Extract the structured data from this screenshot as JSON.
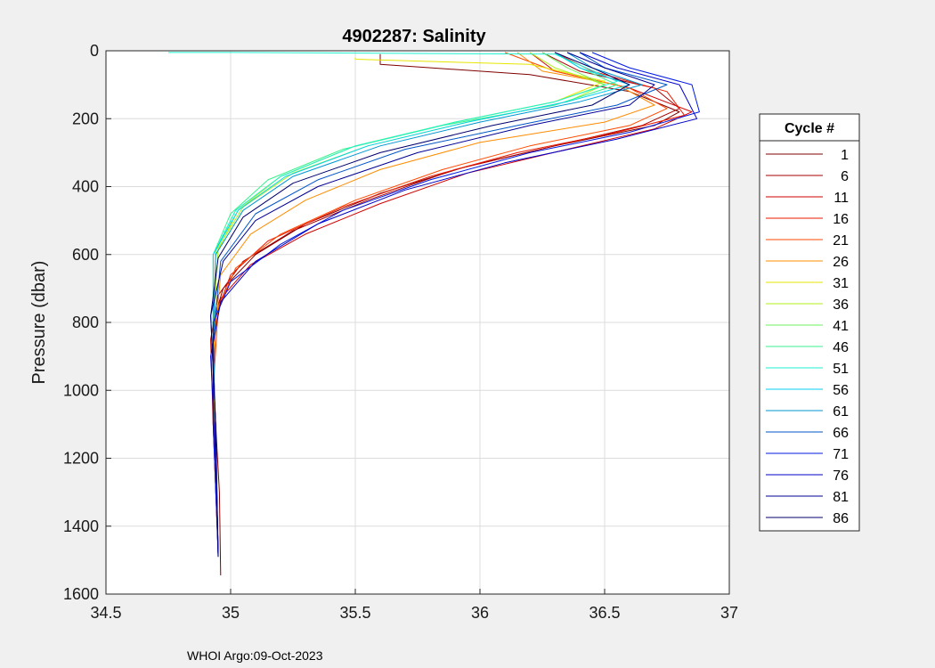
{
  "chart_data": {
    "type": "line",
    "title": "4902287:  Salinity",
    "xlabel": "",
    "ylabel": "Pressure (dbar)",
    "xlim": [
      34.5,
      37
    ],
    "ylim": [
      0,
      1600
    ],
    "y_reversed": true,
    "grid": true,
    "x_ticks": [
      "34.5",
      "35",
      "35.5",
      "36",
      "36.5",
      "37"
    ],
    "y_ticks": [
      "0",
      "200",
      "400",
      "600",
      "800",
      "1000",
      "1200",
      "1400",
      "1600"
    ],
    "legend": {
      "title": "Cycle #",
      "placement": "right",
      "entries": [
        {
          "label": "1",
          "color": "#7f0000"
        },
        {
          "label": "6",
          "color": "#a80000"
        },
        {
          "label": "11",
          "color": "#d10000"
        },
        {
          "label": "16",
          "color": "#ee1a00"
        },
        {
          "label": "21",
          "color": "#ff4a00"
        },
        {
          "label": "26",
          "color": "#ff8c00"
        },
        {
          "label": "31",
          "color": "#e6e600"
        },
        {
          "label": "36",
          "color": "#b0f21c"
        },
        {
          "label": "41",
          "color": "#6ef25e"
        },
        {
          "label": "46",
          "color": "#38f28c"
        },
        {
          "label": "51",
          "color": "#1ef2d0"
        },
        {
          "label": "56",
          "color": "#00d2f0"
        },
        {
          "label": "61",
          "color": "#0096d2"
        },
        {
          "label": "66",
          "color": "#0055c8"
        },
        {
          "label": "71",
          "color": "#0018e6"
        },
        {
          "label": "76",
          "color": "#0000c8"
        },
        {
          "label": "81",
          "color": "#000096"
        },
        {
          "label": "86",
          "color": "#00006e"
        }
      ]
    },
    "series": [
      {
        "name": "1",
        "color": "#7f0000",
        "x": [
          35.6,
          35.6,
          36.2,
          36.6,
          36.8,
          36.7,
          36.3,
          35.95,
          35.6,
          35.3,
          35.1,
          34.97,
          34.93,
          34.93,
          34.94,
          34.955,
          34.96
        ],
        "y": [
          10,
          40,
          70,
          120,
          180,
          220,
          280,
          340,
          420,
          510,
          600,
          700,
          800,
          900,
          1100,
          1300,
          1545
        ]
      },
      {
        "name": "6",
        "color": "#a80000",
        "x": [
          36.25,
          36.4,
          36.7,
          36.8,
          36.65,
          36.3,
          35.9,
          35.55,
          35.25,
          35.05,
          34.95,
          34.92,
          34.93,
          34.95
        ],
        "y": [
          5,
          60,
          110,
          170,
          220,
          280,
          350,
          440,
          530,
          620,
          720,
          850,
          1100,
          1480
        ]
      },
      {
        "name": "11",
        "color": "#d10000",
        "x": [
          36.2,
          36.3,
          36.6,
          36.85,
          36.7,
          36.35,
          35.95,
          35.6,
          35.3,
          35.08,
          34.96,
          34.93,
          34.93,
          34.95
        ],
        "y": [
          5,
          60,
          110,
          180,
          230,
          290,
          360,
          450,
          540,
          630,
          730,
          860,
          1100,
          1480
        ]
      },
      {
        "name": "16",
        "color": "#ee1a00",
        "x": [
          36.3,
          36.45,
          36.75,
          36.82,
          36.55,
          36.15,
          35.8,
          35.45,
          35.15,
          35.0,
          34.94,
          34.93,
          34.95
        ],
        "y": [
          5,
          60,
          120,
          190,
          240,
          300,
          370,
          460,
          560,
          660,
          780,
          1000,
          1480
        ]
      },
      {
        "name": "21",
        "color": "#ff4a00",
        "x": [
          36.1,
          36.3,
          36.6,
          36.75,
          36.6,
          36.2,
          35.85,
          35.5,
          35.2,
          35.02,
          34.95,
          34.93,
          34.95
        ],
        "y": [
          5,
          60,
          110,
          170,
          220,
          280,
          350,
          440,
          540,
          640,
          760,
          1000,
          1480
        ]
      },
      {
        "name": "26",
        "color": "#ff8c00",
        "x": [
          36.15,
          36.25,
          36.55,
          36.7,
          36.5,
          36.0,
          35.6,
          35.3,
          35.08,
          34.96,
          34.93,
          34.95
        ],
        "y": [
          5,
          60,
          100,
          160,
          210,
          270,
          350,
          440,
          540,
          660,
          900,
          1480
        ]
      },
      {
        "name": "31",
        "color": "#e6e600",
        "x": [
          35.5,
          35.5,
          36.2,
          36.5,
          36.3,
          35.9,
          35.5,
          35.2,
          35.03,
          34.94,
          34.93,
          34.95
        ],
        "y": [
          20,
          25,
          40,
          90,
          150,
          210,
          280,
          370,
          470,
          600,
          900,
          1480
        ]
      },
      {
        "name": "36",
        "color": "#b0f21c",
        "x": [
          36.2,
          36.3,
          36.5,
          36.35,
          35.95,
          35.55,
          35.25,
          35.05,
          34.95,
          34.93,
          34.95
        ],
        "y": [
          5,
          50,
          100,
          150,
          210,
          280,
          360,
          460,
          580,
          850,
          1480
        ]
      },
      {
        "name": "41",
        "color": "#6ef25e",
        "x": [
          36.25,
          36.35,
          36.5,
          36.3,
          35.9,
          35.5,
          35.2,
          35.02,
          34.94,
          34.93,
          34.95
        ],
        "y": [
          5,
          50,
          100,
          150,
          210,
          280,
          370,
          470,
          590,
          850,
          1480
        ]
      },
      {
        "name": "46",
        "color": "#38f28c",
        "x": [
          36.3,
          36.4,
          36.55,
          36.3,
          35.85,
          35.45,
          35.15,
          35.0,
          34.93,
          34.93,
          34.95
        ],
        "y": [
          5,
          50,
          100,
          160,
          220,
          290,
          380,
          480,
          600,
          850,
          1480
        ]
      },
      {
        "name": "51",
        "color": "#1ef2d0",
        "x": [
          34.75,
          35.0,
          36.3,
          36.55,
          36.3,
          35.9,
          35.5,
          35.2,
          35.02,
          34.93,
          34.93,
          34.95
        ],
        "y": [
          5,
          5,
          10,
          90,
          150,
          210,
          280,
          370,
          470,
          600,
          850,
          1480
        ]
      },
      {
        "name": "56",
        "color": "#00d2f0",
        "x": [
          36.3,
          36.4,
          36.6,
          36.35,
          35.95,
          35.55,
          35.22,
          35.03,
          34.93,
          34.93,
          34.95
        ],
        "y": [
          5,
          50,
          100,
          150,
          210,
          280,
          370,
          470,
          600,
          850,
          1480
        ]
      },
      {
        "name": "61",
        "color": "#0096d2",
        "x": [
          36.35,
          36.45,
          36.65,
          36.4,
          36.0,
          35.6,
          35.25,
          35.05,
          34.94,
          34.93,
          34.95
        ],
        "y": [
          5,
          50,
          100,
          150,
          210,
          280,
          370,
          470,
          600,
          850,
          1480
        ]
      },
      {
        "name": "66",
        "color": "#0055c8",
        "x": [
          36.4,
          36.5,
          36.75,
          36.55,
          36.15,
          35.7,
          35.35,
          35.1,
          34.96,
          34.93,
          34.95
        ],
        "y": [
          5,
          50,
          100,
          160,
          220,
          290,
          380,
          480,
          620,
          850,
          1480
        ]
      },
      {
        "name": "71",
        "color": "#0018e6",
        "x": [
          36.45,
          36.6,
          36.85,
          36.88,
          36.6,
          36.2,
          35.8,
          35.45,
          35.2,
          35.0,
          34.93,
          34.93,
          34.95
        ],
        "y": [
          5,
          50,
          100,
          180,
          240,
          300,
          380,
          470,
          570,
          680,
          800,
          1100,
          1480
        ]
      },
      {
        "name": "76",
        "color": "#0000c8",
        "x": [
          36.4,
          36.55,
          36.8,
          36.87,
          36.55,
          36.1,
          35.7,
          35.35,
          35.1,
          34.96,
          34.92,
          34.94,
          34.95
        ],
        "y": [
          5,
          50,
          100,
          200,
          260,
          330,
          410,
          510,
          620,
          740,
          900,
          1200,
          1490
        ]
      },
      {
        "name": "81",
        "color": "#000096",
        "x": [
          36.35,
          36.5,
          36.7,
          36.6,
          36.2,
          35.75,
          35.35,
          35.1,
          34.97,
          34.92,
          34.94,
          34.95
        ],
        "y": [
          5,
          50,
          100,
          160,
          220,
          300,
          400,
          500,
          620,
          780,
          1100,
          1490
        ]
      },
      {
        "name": "86",
        "color": "#00006e",
        "x": [
          36.3,
          36.45,
          36.6,
          36.45,
          36.05,
          35.6,
          35.25,
          35.05,
          34.95,
          34.92,
          34.94,
          34.95
        ],
        "y": [
          5,
          50,
          100,
          160,
          220,
          300,
          390,
          490,
          610,
          780,
          1100,
          1490
        ]
      }
    ]
  },
  "footer": {
    "text": "WHOI Argo:09-Oct-2023"
  }
}
